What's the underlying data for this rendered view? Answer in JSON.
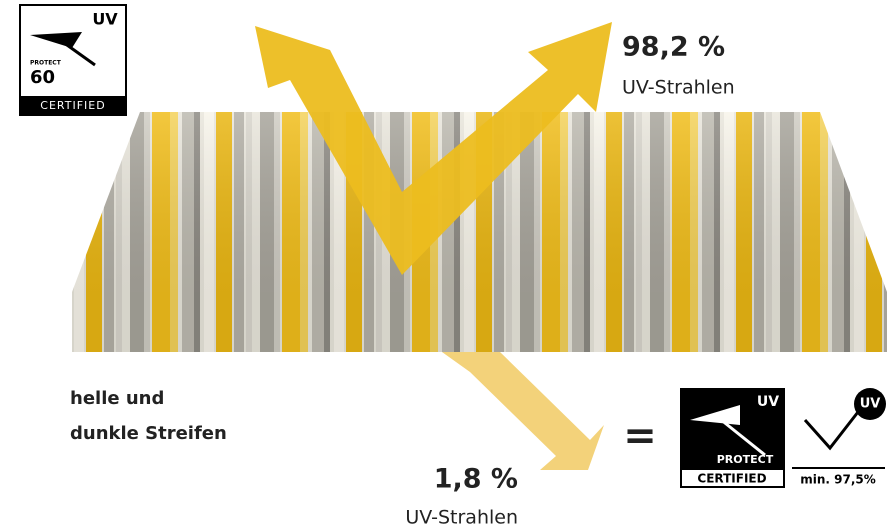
{
  "badge_top": {
    "uv": "UV",
    "protect": "PROTECT",
    "rating": "60",
    "certified": "CERTIFIED"
  },
  "reflected": {
    "value": "98,2 %",
    "label": "UV-Strahlen"
  },
  "transmitted": {
    "value": "1,8 %",
    "label": "UV-Strahlen"
  },
  "fabric_label": [
    "helle und",
    "dunkle Streifen"
  ],
  "equals": "=",
  "badge_bottom": {
    "uv": "UV",
    "protect": "PROTECT",
    "certified": "CERTIFIED"
  },
  "badge_min": {
    "uv": "UV",
    "text": "min. 97,5%"
  }
}
